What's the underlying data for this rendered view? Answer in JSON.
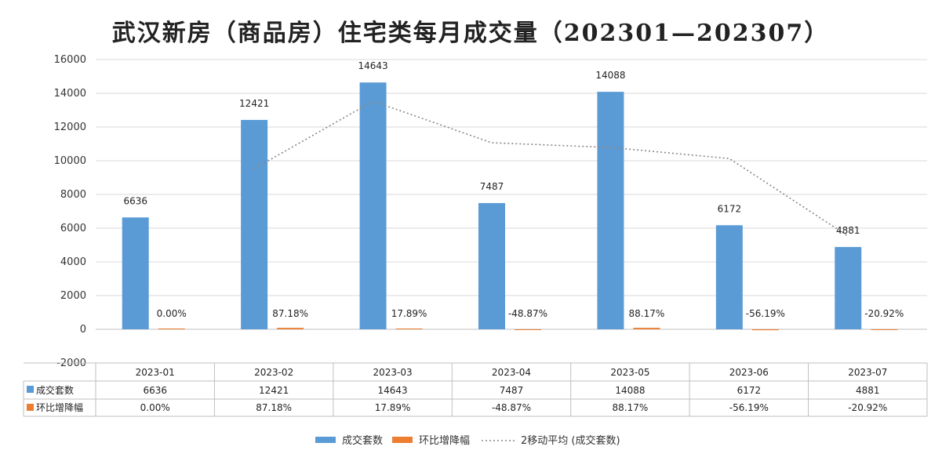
{
  "chart_data": {
    "type": "bar",
    "title": "武汉新房（商品房）住宅类每月成交量（202301—202307）",
    "categories": [
      "2023-01",
      "2023-02",
      "2023-03",
      "2023-04",
      "2023-05",
      "2023-06",
      "2023-07"
    ],
    "series": [
      {
        "name": "成交套数",
        "type": "bar",
        "color": "#5b9bd5",
        "values": [
          6636,
          12421,
          14643,
          7487,
          14088,
          6172,
          4881
        ],
        "labels": [
          "6636",
          "12421",
          "14643",
          "7487",
          "14088",
          "6172",
          "4881"
        ]
      },
      {
        "name": "环比增降幅",
        "type": "bar",
        "color": "#ed7d31",
        "values": [
          0.0,
          87.18,
          17.89,
          -48.87,
          88.17,
          -56.19,
          -20.92
        ],
        "labels": [
          "0.00%",
          "87.18%",
          "17.89%",
          "-48.87%",
          "88.17%",
          "-56.19%",
          "-20.92%"
        ]
      },
      {
        "name": "2移动平均 (成交套数)",
        "type": "line",
        "style": "dotted",
        "color": "#888888",
        "x": [
          "2023-02",
          "2023-03",
          "2023-04",
          "2023-05",
          "2023-06",
          "2023-07"
        ],
        "values": [
          9528.5,
          13532,
          11065,
          10787.5,
          10130,
          5526.5
        ]
      }
    ],
    "ylim": [
      -2000,
      16000
    ],
    "yticks": [
      "16000",
      "14000",
      "12000",
      "10000",
      "8000",
      "6000",
      "4000",
      "2000",
      "0",
      "-2000"
    ],
    "grid": true,
    "data_table": true,
    "legend_position": "bottom"
  }
}
